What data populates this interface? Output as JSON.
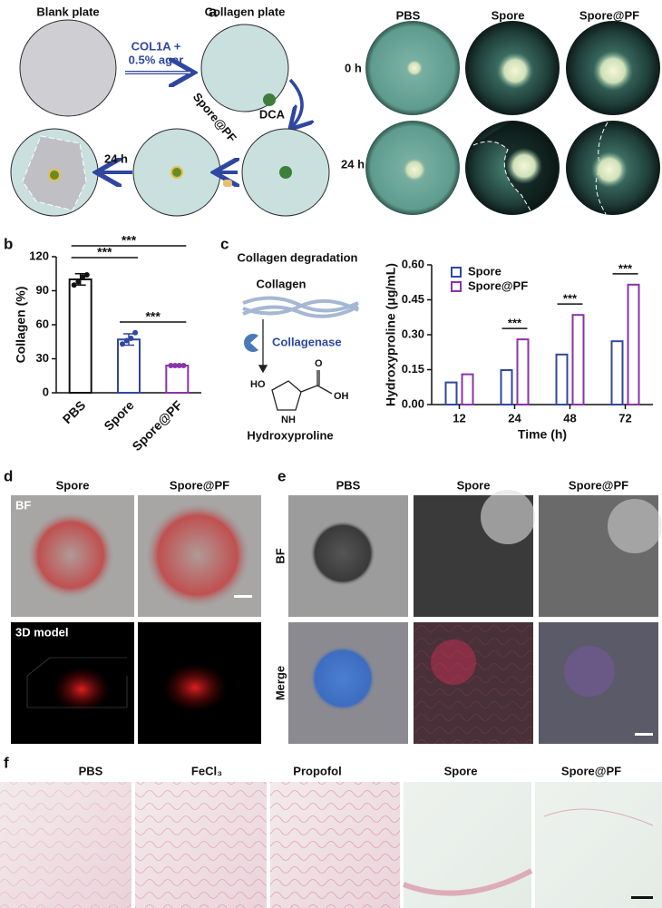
{
  "panels": {
    "a": {
      "label": "a",
      "blank_plate": "Blank plate",
      "collagen_plate": "Collagen plate",
      "additive": [
        "COL1A +",
        "0.5% agar"
      ],
      "dca": "DCA",
      "spore_pf": "Spore@PF",
      "time": "24 h",
      "columns": [
        "PBS",
        "Spore",
        "Spore@PF"
      ],
      "rows": [
        "0 h",
        "24 h"
      ]
    },
    "b": {
      "label": "b"
    },
    "c": {
      "label": "c",
      "scheme_title": "Collagen degradation",
      "collagen": "Collagen",
      "enzyme": "Collagenase",
      "product": "Hydroxyproline",
      "ho": "HO",
      "nh": "NH",
      "oh": "OH",
      "o": "O"
    },
    "d": {
      "label": "d",
      "columns": [
        "Spore",
        "Spore@PF"
      ],
      "bf": "BF",
      "model": "3D model"
    },
    "e": {
      "label": "e",
      "columns": [
        "PBS",
        "Spore",
        "Spore@PF"
      ],
      "rows": [
        "BF",
        "Merge"
      ]
    },
    "f": {
      "label": "f",
      "columns": [
        "PBS",
        "FeCl₃",
        "Propofol",
        "Spore",
        "Spore@PF"
      ]
    }
  },
  "chart_data": [
    {
      "type": "bar",
      "categories": [
        "PBS",
        "Spore",
        "Spore@PF"
      ],
      "values": [
        100,
        47,
        24
      ],
      "errors": [
        5,
        5,
        0.5
      ],
      "points": [
        [
          95,
          98,
          102,
          104
        ],
        [
          43,
          46,
          48,
          53
        ],
        [
          24,
          24,
          24,
          24
        ]
      ],
      "colors": [
        "#111111",
        "#2f47a0",
        "#8a33a8"
      ],
      "ylabel": "Collagen (%)",
      "ylim": [
        0,
        120
      ],
      "yticks": [
        0,
        30,
        60,
        90,
        120
      ],
      "significance": [
        {
          "from": "PBS",
          "to": "Spore@PF",
          "label": "***"
        },
        {
          "from": "PBS",
          "to": "Spore",
          "label": "***"
        },
        {
          "from": "Spore",
          "to": "Spore@PF",
          "label": "***"
        }
      ]
    },
    {
      "type": "grouped_bar",
      "categories": [
        "12",
        "24",
        "48",
        "72"
      ],
      "series": [
        {
          "name": "Spore",
          "color": "#2f47a0",
          "values": [
            0.095,
            0.148,
            0.215,
            0.272
          ]
        },
        {
          "name": "Spore@PF",
          "color": "#8a33a8",
          "values": [
            0.13,
            0.28,
            0.385,
            0.515
          ]
        }
      ],
      "xlabel": "Time (h)",
      "ylabel": "Hydroxyproline (μg/mL)",
      "legend": "upper-left",
      "ylim": [
        0,
        0.6
      ],
      "yticks": [
        {
          "value": 0,
          "label": "0.00"
        },
        {
          "value": 0.15,
          "label": "0.15"
        },
        {
          "value": 0.3,
          "label": "0.30"
        },
        {
          "value": 0.45,
          "label": "0.45"
        },
        {
          "value": 0.6,
          "label": "0.60"
        }
      ],
      "significance": [
        {
          "category": "24",
          "label": "***"
        },
        {
          "category": "48",
          "label": "***"
        },
        {
          "category": "72",
          "label": "***"
        }
      ]
    }
  ]
}
